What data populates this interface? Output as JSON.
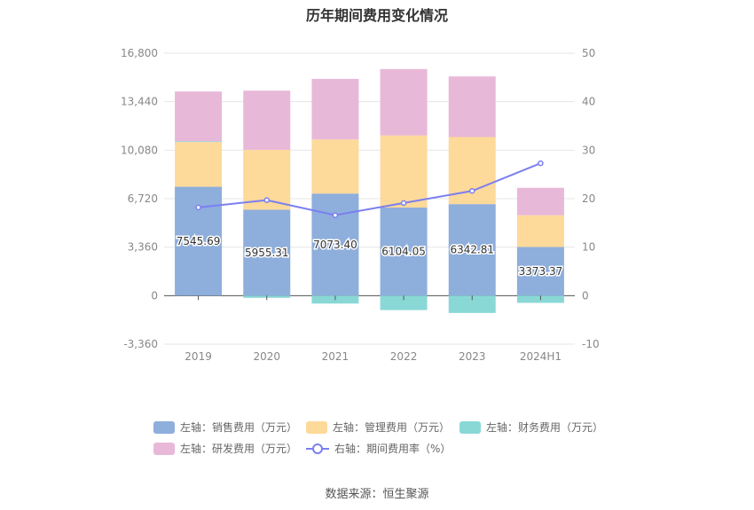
{
  "chart_data": {
    "type": "bar",
    "title": "历年期间费用变化情况",
    "categories": [
      "2019",
      "2020",
      "2021",
      "2022",
      "2023",
      "2024H1"
    ],
    "left_axis": {
      "ticks": [
        "16,800",
        "13,440",
        "10,080",
        "6,720",
        "3,360",
        "0",
        "-3,360"
      ],
      "ylim": [
        -3360,
        16800
      ]
    },
    "right_axis": {
      "ticks": [
        "50",
        "40",
        "30",
        "20",
        "10",
        "0",
        "-10"
      ],
      "ylim": [
        -10,
        50
      ]
    },
    "series": [
      {
        "name": "左轴：销售费用（万元）",
        "color": "#8eaedc",
        "values": [
          7545.69,
          5955.31,
          7073.4,
          6104.05,
          6342.81,
          3373.37
        ],
        "labels": [
          "7545.69",
          "5955.31",
          "7073.40",
          "6104.05",
          "6342.81",
          "3373.37"
        ]
      },
      {
        "name": "左轴：管理费用（万元）",
        "color": "#fdd99a",
        "values": [
          3100,
          4150,
          3750,
          5000,
          4650,
          2200
        ]
      },
      {
        "name": "左轴：财务费用（万元）",
        "color": "#89d8d6",
        "values": [
          50,
          -150,
          -550,
          -1000,
          -1200,
          -500
        ]
      },
      {
        "name": "左轴：研发费用（万元）",
        "color": "#e8b8d9",
        "values": [
          3450,
          4100,
          4200,
          4600,
          4200,
          1900
        ]
      },
      {
        "name": "右轴：期间费用率（%）",
        "color": "#7b7ff0",
        "type": "line",
        "axis": "right",
        "values": [
          18.2,
          19.7,
          16.6,
          19.1,
          21.6,
          27.3
        ]
      }
    ],
    "legend": "bottom"
  },
  "source": "数据来源：恒生聚源"
}
